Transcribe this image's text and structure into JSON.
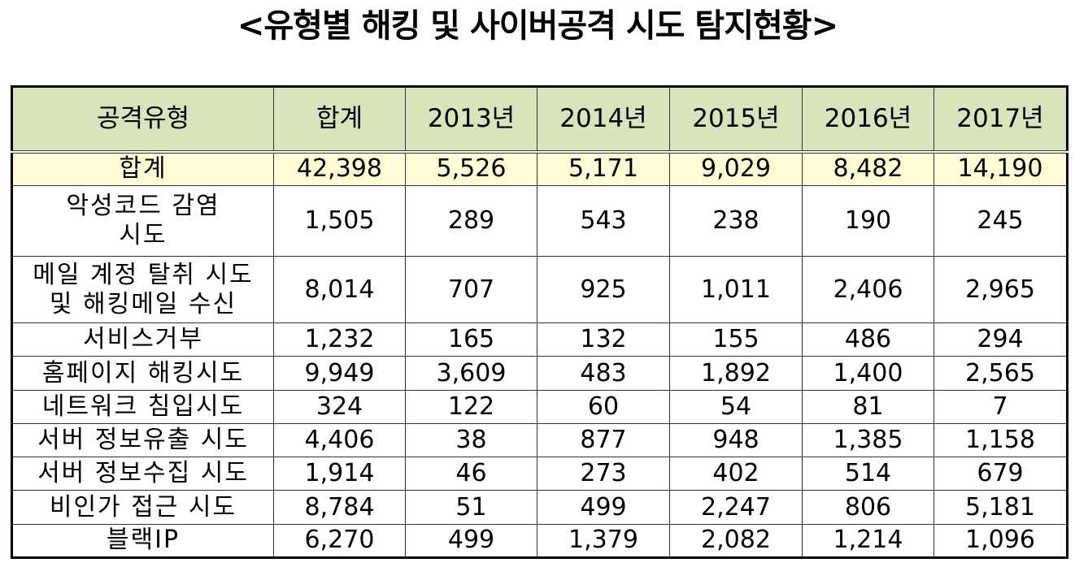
{
  "title": "<유형별 해킹 및 사이버공격 시도 탐지현황>",
  "columns": [
    "공격유형",
    "합계",
    "2013년",
    "2014년",
    "2015년",
    "2016년",
    "2017년"
  ],
  "rows": [
    {
      "label": "합계",
      "values": [
        "42,398",
        "5,526",
        "5,171",
        "9,029",
        "8,482",
        "14,190"
      ]
    },
    {
      "label": "악성코드 감염\n시도",
      "values": [
        "1,505",
        "289",
        "543",
        "238",
        "190",
        "245"
      ]
    },
    {
      "label": "메일 계정 탈취 시도\n및 해킹메일 수신",
      "values": [
        "8,014",
        "707",
        "925",
        "1,011",
        "2,406",
        "2,965"
      ]
    },
    {
      "label": "서비스거부",
      "values": [
        "1,232",
        "165",
        "132",
        "155",
        "486",
        "294"
      ]
    },
    {
      "label": "홈페이지 해킹시도",
      "values": [
        "9,949",
        "3,609",
        "483",
        "1,892",
        "1,400",
        "2,565"
      ]
    },
    {
      "label": "네트워크 침입시도",
      "values": [
        "324",
        "122",
        "60",
        "54",
        "81",
        "7"
      ]
    },
    {
      "label": "서버 정보유출 시도",
      "values": [
        "4,406",
        "38",
        "877",
        "948",
        "1,385",
        "1,158"
      ]
    },
    {
      "label": "서버 정보수집 시도",
      "values": [
        "1,914",
        "46",
        "273",
        "402",
        "514",
        "679"
      ]
    },
    {
      "label": "비인가 접근 시도",
      "values": [
        "8,784",
        "51",
        "499",
        "2,247",
        "806",
        "5,181"
      ]
    },
    {
      "label": "블랙IP",
      "values": [
        "6,270",
        "499",
        "1,379",
        "2,082",
        "1,214",
        "1,096"
      ]
    }
  ],
  "colors": {
    "header_bg": "#d8e4bc",
    "total_row_bg": "#fffdd6"
  }
}
